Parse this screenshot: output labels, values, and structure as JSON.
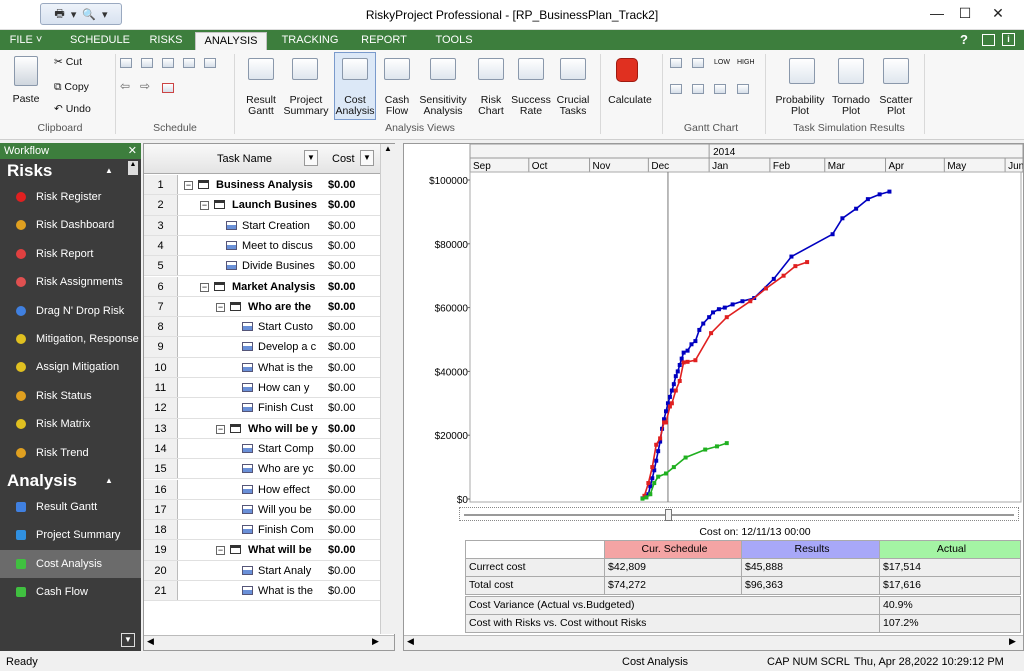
{
  "window": {
    "title": "RiskyProject Professional - [RP_BusinessPlan_Track2]",
    "minimize": "—",
    "maximize": "☐",
    "close": "✕"
  },
  "menu": {
    "items": [
      "FILE ˅",
      "SCHEDULE",
      "RISKS",
      "ANALYSIS",
      "TRACKING",
      "REPORT",
      "TOOLS"
    ],
    "active": "ANALYSIS",
    "help": "?"
  },
  "ribbon": {
    "clipboard": {
      "paste": "Paste",
      "cut": "Cut",
      "copy": "Copy",
      "undo": "Undo",
      "label": "Clipboard"
    },
    "schedule": {
      "label": "Schedule"
    },
    "analysis_views": {
      "label": "Analysis Views",
      "buttons": [
        [
          "Result",
          "Gantt"
        ],
        [
          "Project",
          "Summary"
        ],
        [
          "Cost",
          "Analysis"
        ],
        [
          "Cash",
          "Flow"
        ],
        [
          "Sensitivity",
          "Analysis"
        ],
        [
          "Risk",
          "Chart"
        ],
        [
          "Success",
          "Rate"
        ],
        [
          "Crucial",
          "Tasks"
        ]
      ]
    },
    "calculate": "Calculate",
    "gantt_chart": {
      "label": "Gantt Chart",
      "low": "LOW",
      "high": "HIGH"
    },
    "task_sim": {
      "label": "Task Simulation Results",
      "buttons": [
        [
          "Probability",
          "Plot"
        ],
        [
          "Tornado",
          "Plot"
        ],
        [
          "Scatter",
          "Plot"
        ]
      ]
    }
  },
  "workflow": {
    "header": "Workflow",
    "risks_title": "Risks",
    "risk_items": [
      "Risk Register",
      "Risk Dashboard",
      "Risk Report",
      "Risk Assignments",
      "Drag N' Drop Risk",
      "Mitigation, Response",
      "Assign Mitigation",
      "Risk Status",
      "Risk Matrix",
      "Risk Trend"
    ],
    "analysis_title": "Analysis",
    "analysis_items": [
      "Result Gantt",
      "Project Summary",
      "Cost Analysis",
      "Cash Flow"
    ],
    "selected": "Cost Analysis"
  },
  "grid": {
    "col_task": "Task Name",
    "col_cost": "Cost",
    "rows": [
      {
        "n": "1",
        "name": "Business Analysis",
        "cost": "$0.00",
        "level": 0,
        "summary": true
      },
      {
        "n": "2",
        "name": "Launch Busines",
        "cost": "$0.00",
        "level": 1,
        "summary": true
      },
      {
        "n": "3",
        "name": "Start Creation",
        "cost": "$0.00",
        "level": 2,
        "summary": false
      },
      {
        "n": "4",
        "name": "Meet to discus",
        "cost": "$0.00",
        "level": 2,
        "summary": false
      },
      {
        "n": "5",
        "name": "Divide Busines",
        "cost": "$0.00",
        "level": 2,
        "summary": false
      },
      {
        "n": "6",
        "name": "Market Analysis",
        "cost": "$0.00",
        "level": 1,
        "summary": true
      },
      {
        "n": "7",
        "name": "Who are the",
        "cost": "$0.00",
        "level": 2,
        "summary": true
      },
      {
        "n": "8",
        "name": "Start Custo",
        "cost": "$0.00",
        "level": 3,
        "summary": false
      },
      {
        "n": "9",
        "name": "Develop a c",
        "cost": "$0.00",
        "level": 3,
        "summary": false
      },
      {
        "n": "10",
        "name": "What is the",
        "cost": "$0.00",
        "level": 3,
        "summary": false
      },
      {
        "n": "11",
        "name": "How can y",
        "cost": "$0.00",
        "level": 3,
        "summary": false
      },
      {
        "n": "12",
        "name": "Finish Cust",
        "cost": "$0.00",
        "level": 3,
        "summary": false
      },
      {
        "n": "13",
        "name": "Who will be y",
        "cost": "$0.00",
        "level": 2,
        "summary": true
      },
      {
        "n": "14",
        "name": "Start Comp",
        "cost": "$0.00",
        "level": 3,
        "summary": false
      },
      {
        "n": "15",
        "name": "Who are yc",
        "cost": "$0.00",
        "level": 3,
        "summary": false
      },
      {
        "n": "16",
        "name": "How effect",
        "cost": "$0.00",
        "level": 3,
        "summary": false
      },
      {
        "n": "17",
        "name": "Will you be",
        "cost": "$0.00",
        "level": 3,
        "summary": false
      },
      {
        "n": "18",
        "name": "Finish Com",
        "cost": "$0.00",
        "level": 3,
        "summary": false
      },
      {
        "n": "19",
        "name": "What will be",
        "cost": "$0.00",
        "level": 2,
        "summary": true
      },
      {
        "n": "20",
        "name": "Start Analy",
        "cost": "$0.00",
        "level": 3,
        "summary": false
      },
      {
        "n": "21",
        "name": "What is the",
        "cost": "$0.00",
        "level": 3,
        "summary": false
      }
    ]
  },
  "chart_data": {
    "type": "line",
    "year_label": "2014",
    "months": [
      "Sep",
      "Oct",
      "Nov",
      "Dec",
      "Jan",
      "Feb",
      "Mar",
      "Apr",
      "May",
      "Jun"
    ],
    "yticks": [
      "$100000",
      "$80000",
      "$60000",
      "$40000",
      "$20000",
      "$0"
    ],
    "ylim": [
      0,
      100000
    ],
    "cursor_date": "Dec 11",
    "series": [
      {
        "color": "#0000c0",
        "points": [
          [
            "Nov 28",
            200
          ],
          [
            "Nov 30",
            800
          ],
          [
            "Dec 1",
            1500
          ],
          [
            "Dec 2",
            4000
          ],
          [
            "Dec 3",
            6500
          ],
          [
            "Dec 4",
            9000
          ],
          [
            "Dec 5",
            12000
          ],
          [
            "Dec 6",
            15000
          ],
          [
            "Dec 7",
            18000
          ],
          [
            "Dec 8",
            22000
          ],
          [
            "Dec 9",
            25000
          ],
          [
            "Dec 10",
            27500
          ],
          [
            "Dec 11",
            30000
          ],
          [
            "Dec 12",
            32000
          ],
          [
            "Dec 13",
            34000
          ],
          [
            "Dec 14",
            36000
          ],
          [
            "Dec 15",
            38500
          ],
          [
            "Dec 16",
            40000
          ],
          [
            "Dec 17",
            42000
          ],
          [
            "Dec 18",
            44000
          ],
          [
            "Dec 19",
            45888
          ],
          [
            "Dec 21",
            46500
          ],
          [
            "Dec 23",
            48500
          ],
          [
            "Dec 25",
            49500
          ],
          [
            "Dec 27",
            53000
          ],
          [
            "Dec 29",
            55000
          ],
          [
            "Jan 1",
            57000
          ],
          [
            "Jan 3",
            58500
          ],
          [
            "Jan 6",
            59500
          ],
          [
            "Jan 9",
            60000
          ],
          [
            "Jan 13",
            61000
          ],
          [
            "Jan 18",
            62000
          ],
          [
            "Jan 24",
            63000
          ],
          [
            "Feb 3",
            69000
          ],
          [
            "Feb 12",
            76000
          ],
          [
            "Mar 5",
            83000
          ],
          [
            "Mar 10",
            88000
          ],
          [
            "Mar 17",
            91000
          ],
          [
            "Mar 23",
            94000
          ],
          [
            "Mar 29",
            95500
          ],
          [
            "Apr 3",
            96363
          ]
        ]
      },
      {
        "color": "#e02020",
        "points": [
          [
            "Nov 29",
            1000
          ],
          [
            "Dec 1",
            5000
          ],
          [
            "Dec 3",
            10000
          ],
          [
            "Dec 5",
            17000
          ],
          [
            "Dec 7",
            19000
          ],
          [
            "Dec 9",
            24000
          ],
          [
            "Dec 10",
            24000
          ],
          [
            "Dec 12",
            29000
          ],
          [
            "Dec 13",
            30000
          ],
          [
            "Dec 15",
            34000
          ],
          [
            "Dec 17",
            37000
          ],
          [
            "Dec 19",
            42809
          ],
          [
            "Dec 21",
            43000
          ],
          [
            "Dec 25",
            43500
          ],
          [
            "Jan 2",
            52000
          ],
          [
            "Jan 10",
            57000
          ],
          [
            "Jan 22",
            62000
          ],
          [
            "Jan 30",
            66000
          ],
          [
            "Feb 8",
            70000
          ],
          [
            "Feb 14",
            73000
          ],
          [
            "Feb 20",
            74272
          ]
        ]
      },
      {
        "color": "#20b020",
        "points": [
          [
            "Nov 28",
            100
          ],
          [
            "Nov 30",
            500
          ],
          [
            "Dec 2",
            1500
          ],
          [
            "Dec 4",
            5000
          ],
          [
            "Dec 6",
            7000
          ],
          [
            "Dec 10",
            8000
          ],
          [
            "Dec 14",
            10000
          ],
          [
            "Dec 20",
            13000
          ],
          [
            "Dec 30",
            15500
          ],
          [
            "Jan 5",
            16500
          ],
          [
            "Jan 10",
            17514
          ]
        ]
      }
    ]
  },
  "cost_table": {
    "cost_on": "Cost on: 12/11/13 00:00",
    "headers": [
      "Cur. Schedule",
      "Results",
      "Actual"
    ],
    "header_colors": [
      "#f4a4a4",
      "#a8a8f8",
      "#a4f4a4"
    ],
    "rows": [
      {
        "label": "Currect cost",
        "values": [
          "$42,809",
          "$45,888",
          "$17,514"
        ]
      },
      {
        "label": "Total cost",
        "values": [
          "$74,272",
          "$96,363",
          "$17,616"
        ]
      }
    ],
    "variance": {
      "label": "Cost Variance (Actual vs.Budgeted)",
      "value": "40.9%"
    },
    "risk_ratio": {
      "label": "Cost with Risks vs. Cost without Risks",
      "value": "107.2%"
    }
  },
  "status": {
    "left": "Ready",
    "mode": "Cost Analysis",
    "keys": "CAP  NUM  SCRL",
    "datetime": "Thu, Apr 28,2022  10:29:12 PM"
  }
}
